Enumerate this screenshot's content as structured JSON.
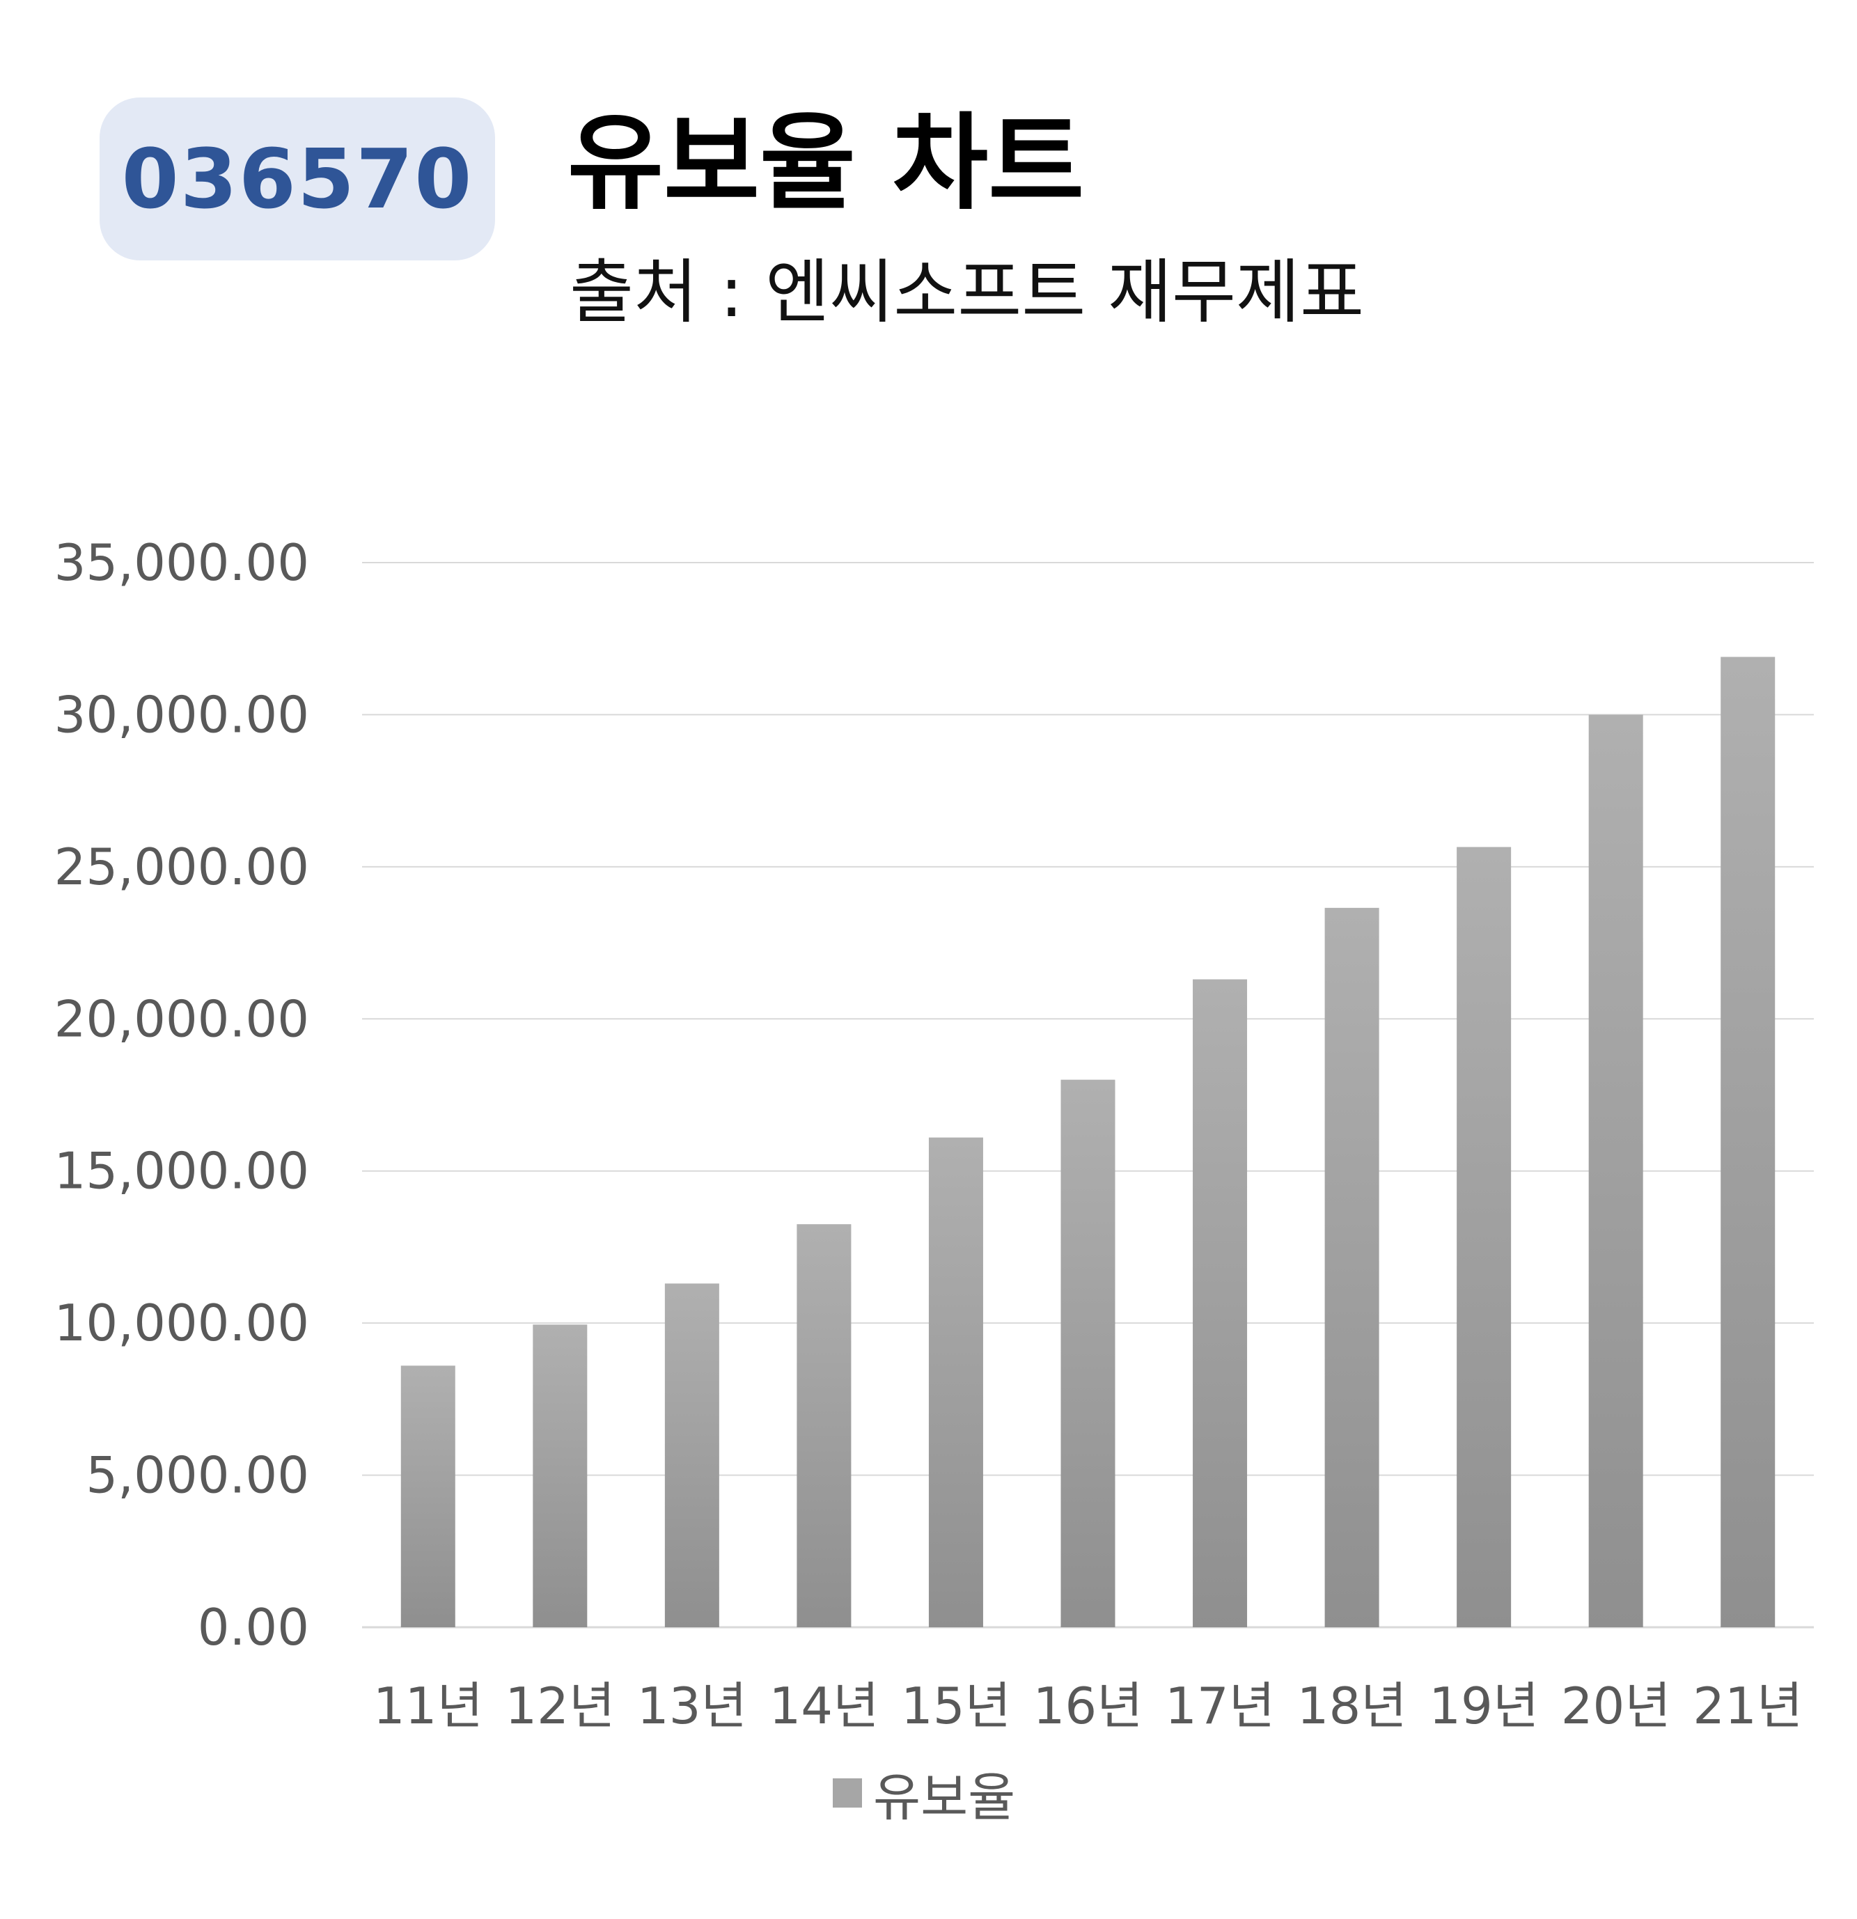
{
  "ticker": "036570",
  "header": {
    "title": "유보율 차트",
    "subtitle": "출처 : 엔씨소프트 재무제표"
  },
  "chart_data": {
    "type": "bar",
    "title": "유보율 차트",
    "subtitle": "출처 : 엔씨소프트 재무제표",
    "categories": [
      "11년",
      "12년",
      "13년",
      "14년",
      "15년",
      "16년",
      "17년",
      "18년",
      "19년",
      "20년",
      "21년"
    ],
    "series": [
      {
        "name": "유보율",
        "values": [
          8600,
          9950,
          11300,
          13250,
          16100,
          18000,
          21300,
          23650,
          25650,
          30000,
          31900
        ]
      }
    ],
    "yticks": [
      "0.00",
      "5,000.00",
      "10,000.00",
      "15,000.00",
      "20,000.00",
      "25,000.00",
      "30,000.00",
      "35,000.00"
    ],
    "ylim": [
      0,
      35000
    ],
    "grid": true,
    "legend_position": "bottom",
    "colors": {
      "bar_top": "#b0b0b0",
      "bar_bottom": "#8f8f8f",
      "grid": "#d9d9d9",
      "axis_text": "#595959",
      "badge_bg": "#e3e9f5",
      "badge_text": "#2f5597"
    }
  }
}
